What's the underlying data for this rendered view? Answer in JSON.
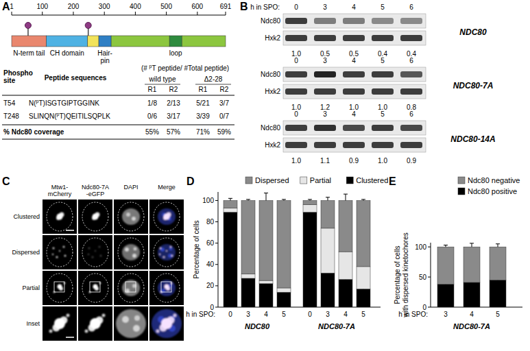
{
  "panel_labels": [
    "A",
    "B",
    "C",
    "D",
    "E"
  ],
  "panel_a": {
    "scale": {
      "start": 1,
      "end": 691,
      "ticks": [
        1,
        100,
        200,
        300,
        400,
        500,
        600,
        691
      ]
    },
    "domains": [
      {
        "label": "N-term tail",
        "start": 1,
        "end": 113,
        "color": "#e9876e"
      },
      {
        "label": "CH domain",
        "start": 113,
        "end": 246,
        "color": "#4fb2e3"
      },
      {
        "start": 246,
        "end": 282,
        "color": "#f2e35a"
      },
      {
        "label": "Hair-\npin",
        "start": 282,
        "end": 322,
        "color": "#2f7fc4"
      },
      {
        "start": 322,
        "end": 510,
        "color": "#8cc63f"
      },
      {
        "label": "loop",
        "start": 510,
        "end": 550,
        "color": "#2e8b3e"
      },
      {
        "start": 550,
        "end": 691,
        "color": "#8cc63f"
      }
    ],
    "phospho_sites": [
      54,
      248
    ],
    "table": {
      "header_note": {
        "pre": "(# ",
        "sup": "p",
        "post": "T peptide/ #Total peptide)"
      },
      "site_header": "Phospho\nsite",
      "sequence_header": "Peptide sequences",
      "groups": [
        "wild type",
        "Δ2-28"
      ],
      "replicates": [
        "R1",
        "R2",
        "R1",
        "R2"
      ],
      "rows": [
        {
          "site": "T54",
          "peptide": {
            "pre": "N(",
            "sup": "p",
            "post": "T)ISGTGIPTGGINK"
          },
          "counts": [
            "1/8",
            "2/13",
            "5/21",
            "3/7"
          ]
        },
        {
          "site": "T248",
          "peptide": {
            "pre": "SLINQN(",
            "sup": "p",
            "post": "T)QEITILSQPLK"
          },
          "counts": [
            "0/6",
            "3/17",
            "3/39",
            "0/7"
          ]
        }
      ],
      "coverage": {
        "label": "% Ndc80 coverage",
        "values": [
          "55%",
          "57%",
          "71%",
          "59%"
        ]
      }
    }
  },
  "panel_b": {
    "xlabel": "h in SPO:",
    "hours": [
      "0",
      "3",
      "4",
      "5",
      "6"
    ],
    "bands": [
      "Ndc80",
      "Hxk2"
    ],
    "blots": [
      {
        "strain": "NDC80",
        "values": [
          1.0,
          0.5,
          0.5,
          0.4,
          0.4
        ],
        "value_labels": [
          "1.0",
          "0.5",
          "0.5",
          "0.4",
          "0.4"
        ]
      },
      {
        "strain": "NDC80-7A",
        "values": [
          1.0,
          1.2,
          1.0,
          1.0,
          0.8
        ],
        "value_labels": [
          "1.0",
          "1.2",
          "1.0",
          "1.0",
          "0.8"
        ]
      },
      {
        "strain": "NDC80-14A",
        "values": [
          1.0,
          1.1,
          0.9,
          1.0,
          0.9
        ],
        "value_labels": [
          "1.0",
          "1.1",
          "0.9",
          "1.0",
          "0.9"
        ]
      }
    ]
  },
  "panel_c": {
    "columns": [
      "Mtw1-\nmCherry",
      "Ndc80-7A\n-eGFP",
      "DAPI",
      "Merge"
    ],
    "rows": [
      "Clustered",
      "Dispersed",
      "Partial",
      "Inset"
    ]
  },
  "chart_data": [
    {
      "type": "bar",
      "stacked": true,
      "legend": "top",
      "categories": [
        "0",
        "3",
        "4",
        "5",
        "0",
        "3",
        "4",
        "5"
      ],
      "groups": [
        "NDC80",
        "NDC80-7A"
      ],
      "xlabel": "h in SPO:",
      "ylabel": "Percentage of cells",
      "ylim": [
        0,
        108
      ],
      "yticks": [
        0,
        20,
        40,
        60,
        80,
        100
      ],
      "series": [
        {
          "name": "Clustered",
          "color": "#000000",
          "values": [
            89,
            27,
            22,
            14,
            89,
            32,
            26,
            17
          ],
          "errors": [
            2,
            1,
            1,
            1,
            2,
            1,
            1,
            5
          ]
        },
        {
          "name": "Partial",
          "color": "#e6e6e6",
          "values": [
            4,
            4,
            3,
            4,
            7,
            42,
            26,
            21
          ],
          "errors": [
            1,
            1,
            1,
            1,
            1,
            2,
            6,
            3
          ]
        },
        {
          "name": "Dispersed",
          "color": "#8a8a8a",
          "values": [
            7,
            69,
            75,
            82,
            4,
            26,
            48,
            62
          ],
          "errors": [
            2,
            1,
            7,
            1,
            1,
            3,
            6,
            1
          ]
        }
      ]
    },
    {
      "type": "bar",
      "stacked": true,
      "legend": "top",
      "categories": [
        "3",
        "4",
        "5"
      ],
      "groups": [
        "NDC80-7A"
      ],
      "xlabel": "h in SPO:",
      "ylabel": "Percentage of cells\nwith dispersed kinetochores",
      "ylim": [
        0,
        107
      ],
      "yticks": [
        0,
        50,
        100
      ],
      "series": [
        {
          "name": "Ndc80 positive",
          "color": "#000000",
          "values": [
            38,
            41,
            45
          ],
          "errors": [
            3,
            10,
            5
          ]
        },
        {
          "name": "Ndc80 negative",
          "color": "#8a8a8a",
          "values": [
            62,
            59,
            55
          ],
          "errors": [
            3,
            6,
            5
          ]
        }
      ]
    }
  ]
}
